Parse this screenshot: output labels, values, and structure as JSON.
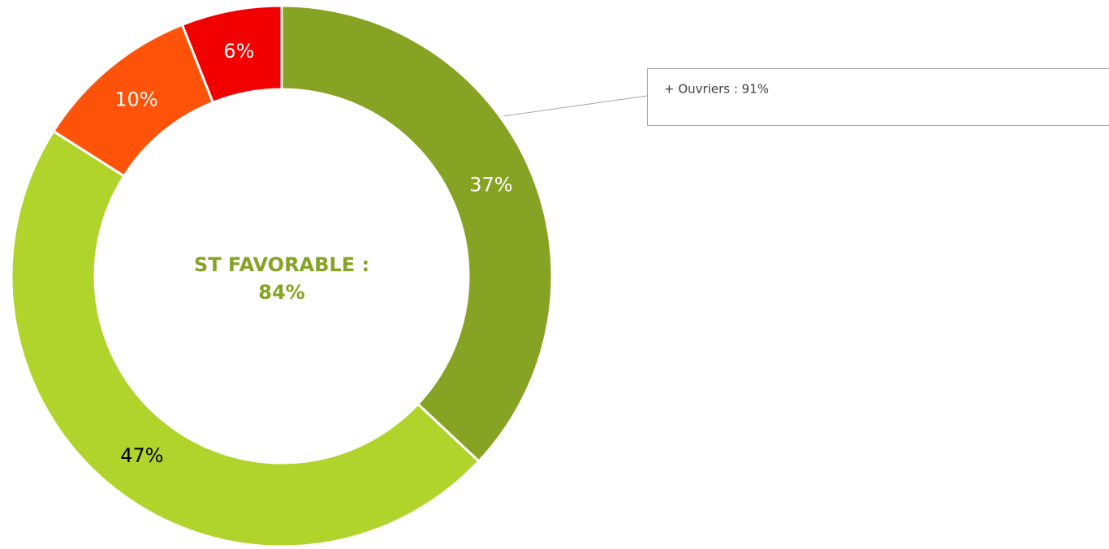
{
  "chart_data": {
    "type": "donut",
    "values": [
      37,
      47,
      10,
      6
    ],
    "value_labels": [
      "37%",
      "47%",
      "10%",
      "6%"
    ],
    "colors": [
      "#86a323",
      "#b1d42c",
      "#ff5309",
      "#f20000"
    ],
    "label_colors": [
      "#ffffff",
      "#000000",
      "#ffffff",
      "#ffffff"
    ],
    "center_text": [
      "ST FAVORABLE :",
      "84%"
    ],
    "center_color": "#86a323",
    "annotation": "+  Ouvriers : 91%"
  }
}
